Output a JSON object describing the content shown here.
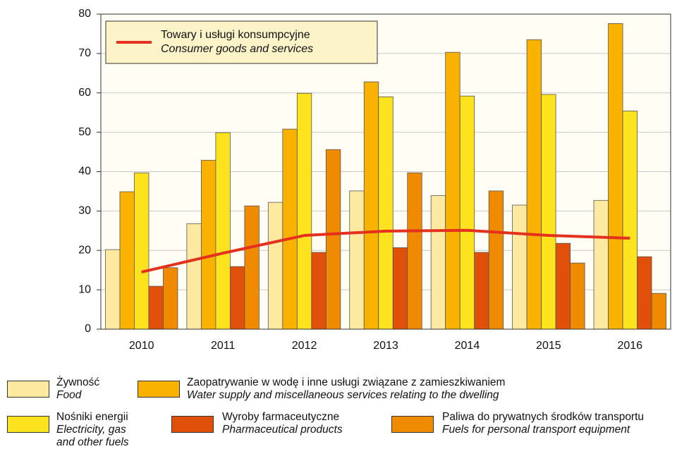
{
  "chart_data": {
    "type": "bar",
    "categories": [
      "2010",
      "2011",
      "2012",
      "2013",
      "2014",
      "2015",
      "2016"
    ],
    "ylim": [
      0,
      80
    ],
    "yticks": [
      0,
      10,
      20,
      30,
      40,
      50,
      60,
      70,
      80
    ],
    "grid": true,
    "series": [
      {
        "name": "Żywność",
        "name_en": "Food",
        "color": "#fde9a0",
        "values": [
          20.2,
          26.8,
          32.2,
          35.1,
          33.9,
          31.5,
          32.7
        ]
      },
      {
        "name": "Zaopatrywanie w wodę i inne usługi związane z zamieszkiwaniem",
        "name_en": "Water supply and miscellaneous services relating to the dwelling",
        "color": "#f9b200",
        "values": [
          34.9,
          42.9,
          50.8,
          62.8,
          70.3,
          73.5,
          77.6
        ]
      },
      {
        "name": "Nośniki energii",
        "name_en": "Electricity, gas and other fuels",
        "color": "#fde21e",
        "values": [
          39.7,
          49.9,
          59.9,
          59.0,
          59.2,
          59.6,
          55.4
        ]
      },
      {
        "name": "Wyroby farmaceutyczne",
        "name_en": "Pharmaceutical products",
        "color": "#e0500a",
        "values": [
          10.9,
          15.9,
          19.5,
          20.7,
          19.5,
          21.8,
          18.4
        ]
      },
      {
        "name": "Paliwa do prywatnych środków transportu",
        "name_en": "Fuels for personal transport equipment",
        "color": "#f08a00",
        "values": [
          15.6,
          31.3,
          45.6,
          39.7,
          35.1,
          16.8,
          9.1
        ]
      },
      {
        "name": "Towary i usługi konsumpcyjne",
        "name_en": "Consumer goods and services",
        "type": "line",
        "color": "#e3301f",
        "values": [
          14.5,
          19.3,
          23.8,
          24.9,
          25.1,
          23.8,
          23.1
        ]
      }
    ]
  }
}
